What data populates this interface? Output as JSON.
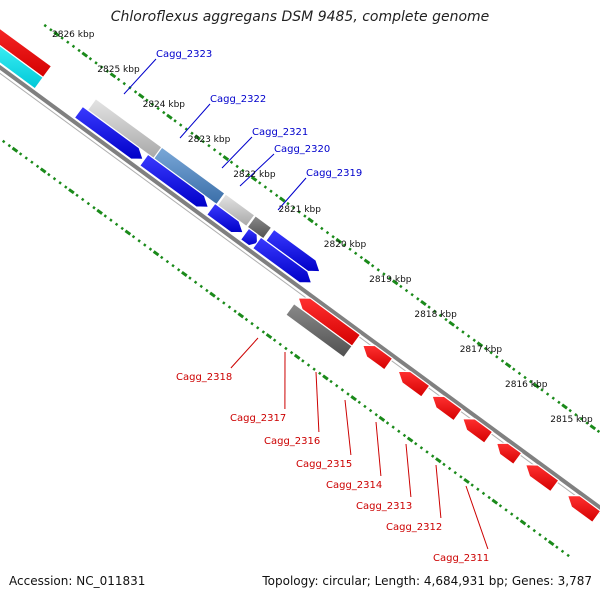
{
  "title": "Chloroflexus aggregans DSM 9485, complete genome",
  "footer": {
    "accession": "Accession: NC_011831",
    "summary": "Topology: circular; Length: 4,684,931 bp; Genes: 3,787"
  },
  "colors": {
    "forward_cds": "#0000ee",
    "reverse_cds": "#ff0000",
    "forward_label": "#0000cc",
    "reverse_label": "#cc0000",
    "backbone": "#808080",
    "tick_dots": "#1a8a1a"
  },
  "scale_labels": [
    "2826 kbp",
    "2825 kbp",
    "2824 kbp",
    "2823 kbp",
    "2822 kbp",
    "2821 kbp",
    "2820 kbp",
    "2819 kbp",
    "2818 kbp",
    "2817 kbp",
    "2816 kbp",
    "2815 kbp"
  ],
  "forward_genes": [
    "Cagg_2323",
    "Cagg_2322",
    "Cagg_2321",
    "Cagg_2320",
    "Cagg_2319"
  ],
  "reverse_genes": [
    "Cagg_2318",
    "Cagg_2317",
    "Cagg_2316",
    "Cagg_2315",
    "Cagg_2314",
    "Cagg_2313",
    "Cagg_2312",
    "Cagg_2311"
  ]
}
